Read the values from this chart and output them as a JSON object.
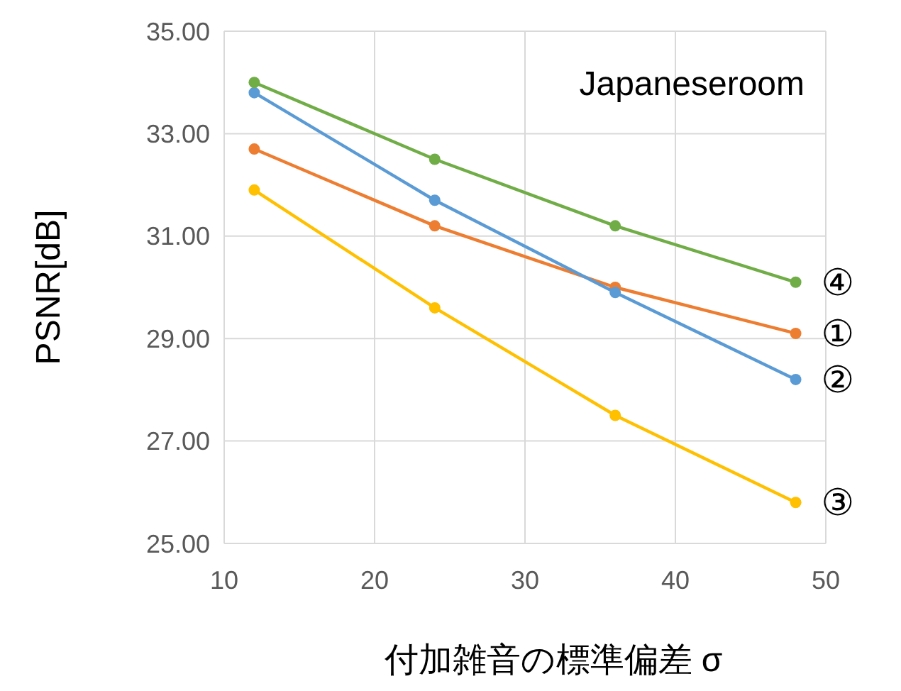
{
  "chart_data": {
    "type": "line",
    "xlabel": "付加雑音の標準偏差 σ",
    "ylabel": "PSNR[dB]",
    "annotations": [
      "Japaneseroom"
    ],
    "x": [
      12,
      24,
      36,
      48
    ],
    "xlim": [
      10,
      50
    ],
    "xticks": [
      10,
      20,
      30,
      40,
      50
    ],
    "ylim": [
      25,
      35
    ],
    "yticks": [
      {
        "value": 25,
        "label": "25.00"
      },
      {
        "value": 27,
        "label": "27.00"
      },
      {
        "value": 29,
        "label": "29.00"
      },
      {
        "value": 31,
        "label": "31.00"
      },
      {
        "value": 33,
        "label": "33.00"
      },
      {
        "value": 35,
        "label": "35.00"
      }
    ],
    "grid": true,
    "marker": "circle",
    "line_style": "solid",
    "series": [
      {
        "name": "①",
        "color": "#ed7d31",
        "values": [
          32.7,
          31.2,
          30.0,
          29.1
        ]
      },
      {
        "name": "②",
        "color": "#5b9bd5",
        "values": [
          33.8,
          31.7,
          29.9,
          28.2
        ]
      },
      {
        "name": "③",
        "color": "#ffc000",
        "values": [
          31.9,
          29.6,
          27.5,
          25.8
        ]
      },
      {
        "name": "④",
        "color": "#70ad47",
        "values": [
          34.0,
          32.5,
          31.2,
          30.1
        ]
      }
    ]
  }
}
